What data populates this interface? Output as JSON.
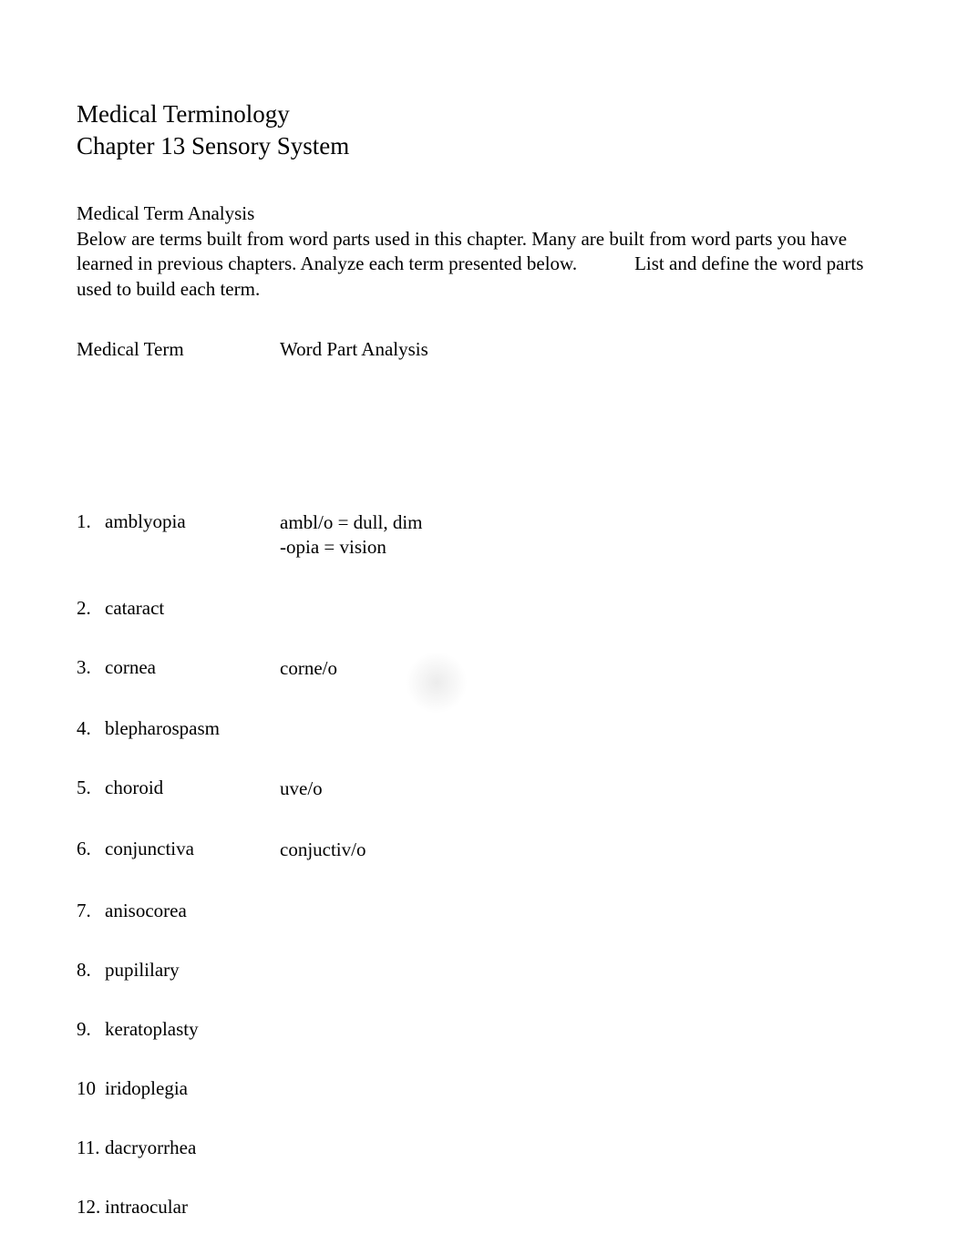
{
  "title_line1": "Medical Terminology",
  "title_line2": "Chapter 13 Sensory System",
  "section_heading": "Medical Term Analysis",
  "intro_text": "Below are terms built from word parts used in this chapter. Many are built from word parts you have learned in previous chapters. Analyze each term presented below.            List and define the word parts used to build each term.",
  "column_headers": {
    "term": "Medical Term",
    "analysis": "Word Part Analysis"
  },
  "terms": [
    {
      "num": "1.",
      "term": "amblyopia",
      "analysis": [
        "ambl/o = dull, dim",
        "-opia = vision"
      ]
    },
    {
      "num": "2.",
      "term": "cataract",
      "analysis": []
    },
    {
      "num": "3.",
      "term": "cornea",
      "analysis": [
        "corne/o"
      ]
    },
    {
      "num": "4.",
      "term": "blepharospasm",
      "analysis": []
    },
    {
      "num": "5.",
      "term": "choroid",
      "analysis": [
        "uve/o"
      ]
    },
    {
      "num": "6.",
      "term": "conjunctiva",
      "analysis": [
        "conjuctiv/o"
      ]
    },
    {
      "num": "7.",
      "term": "anisocorea",
      "analysis": []
    },
    {
      "num": "8.",
      "term": "pupililary",
      "analysis": []
    },
    {
      "num": "9.",
      "term": "keratoplasty",
      "analysis": []
    },
    {
      "num": "10",
      "term": "iridoplegia",
      "analysis": []
    },
    {
      "num": "11.",
      "term": "dacryorrhea",
      "analysis": []
    },
    {
      "num": "12.",
      "term": "intraocular",
      "analysis": []
    }
  ],
  "colors": {
    "text": "#000000",
    "background": "#ffffff"
  },
  "typography": {
    "title_fontsize": 27,
    "body_fontsize": 21,
    "font_family": "serif"
  }
}
